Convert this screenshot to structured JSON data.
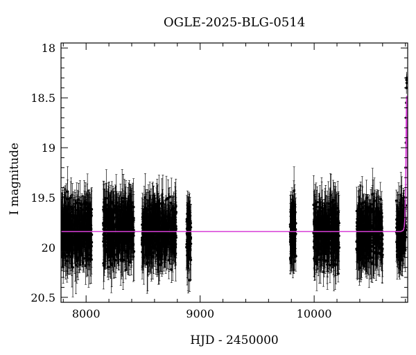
{
  "chart_data": {
    "type": "scatter",
    "title": "OGLE-2025-BLG-0514",
    "xlabel": "HJD - 2450000",
    "ylabel": "I magnitude",
    "xlim": [
      7780,
      10820
    ],
    "ylim": [
      20.55,
      17.95
    ],
    "y_inverted": true,
    "x_ticks": [
      8000,
      9000,
      10000
    ],
    "y_ticks": [
      18,
      18.5,
      19,
      19.5,
      20,
      20.5
    ],
    "grid": false,
    "legend": "none",
    "baseline_mag": 19.84,
    "colors": {
      "points": "#000000",
      "model": "#d83ed8"
    },
    "seasons": [
      {
        "x_range": [
          7785,
          8050
        ],
        "median_mag": 19.84,
        "spread": 0.28
      },
      {
        "x_range": [
          8150,
          8420
        ],
        "median_mag": 19.84,
        "spread": 0.28
      },
      {
        "x_range": [
          8490,
          8790
        ],
        "median_mag": 19.84,
        "spread": 0.28
      },
      {
        "x_range": [
          8880,
          8920
        ],
        "median_mag": 19.9,
        "spread": 0.3
      },
      {
        "x_range": [
          9790,
          9840
        ],
        "median_mag": 19.85,
        "spread": 0.3
      },
      {
        "x_range": [
          9995,
          10220
        ],
        "median_mag": 19.86,
        "spread": 0.28
      },
      {
        "x_range": [
          10370,
          10600
        ],
        "median_mag": 19.85,
        "spread": 0.28
      },
      {
        "x_range": [
          10720,
          10805
        ],
        "median_mag": 19.84,
        "spread": 0.26
      }
    ],
    "model_curve": [
      {
        "x": 7780,
        "y": 19.84
      },
      {
        "x": 10760,
        "y": 19.84
      },
      {
        "x": 10780,
        "y": 19.83
      },
      {
        "x": 10790,
        "y": 19.8
      },
      {
        "x": 10795,
        "y": 19.72
      },
      {
        "x": 10798,
        "y": 19.6
      },
      {
        "x": 10801,
        "y": 19.4
      },
      {
        "x": 10804,
        "y": 19.1
      },
      {
        "x": 10807,
        "y": 18.75
      },
      {
        "x": 10810,
        "y": 18.5
      },
      {
        "x": 10812,
        "y": 18.48
      },
      {
        "x": 10814,
        "y": 18.7
      },
      {
        "x": 10817,
        "y": 19.3
      },
      {
        "x": 10820,
        "y": 19.75
      }
    ],
    "peak_points": [
      {
        "x": 10800,
        "y": 19.5
      },
      {
        "x": 10803,
        "y": 19.2
      },
      {
        "x": 10805,
        "y": 18.95
      },
      {
        "x": 10807,
        "y": 18.7
      },
      {
        "x": 10808,
        "y": 18.55
      },
      {
        "x": 10809,
        "y": 18.4
      },
      {
        "x": 10810,
        "y": 18.32
      },
      {
        "x": 10811,
        "y": 18.3
      },
      {
        "x": 10812,
        "y": 18.35
      },
      {
        "x": 10813,
        "y": 18.6
      }
    ]
  }
}
